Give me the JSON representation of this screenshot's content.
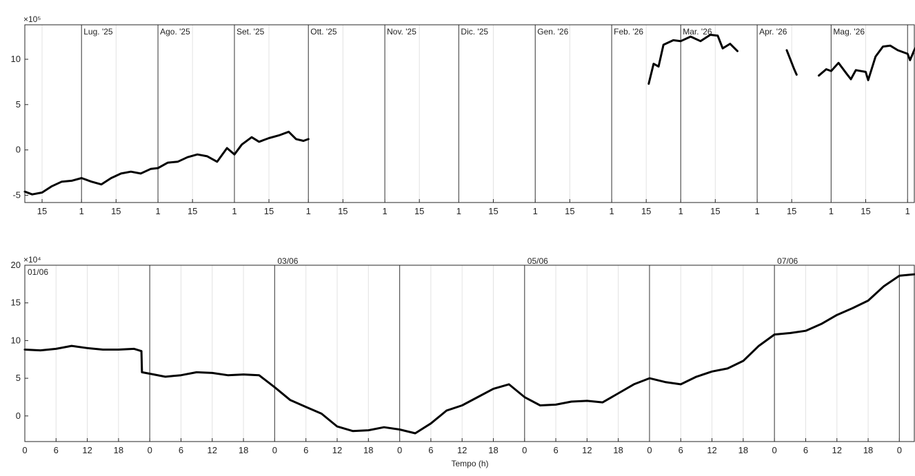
{
  "chart_data": [
    {
      "type": "line",
      "exponent_label": "×10⁵",
      "xlabel": "",
      "ylabel": "",
      "ylim": [
        -5.8,
        13.8
      ],
      "y_ticks": [
        -5,
        0,
        5,
        10
      ],
      "x_domain": [
        "2025-06-08",
        "2026-06-04"
      ],
      "month_labels": [
        {
          "date": "2025-07-01",
          "label": "Lug. '25"
        },
        {
          "date": "2025-08-01",
          "label": "Ago. '25"
        },
        {
          "date": "2025-09-01",
          "label": "Set. '25"
        },
        {
          "date": "2025-10-01",
          "label": "Ott. '25"
        },
        {
          "date": "2025-11-01",
          "label": "Nov. '25"
        },
        {
          "date": "2025-12-01",
          "label": "Dic. '25"
        },
        {
          "date": "2026-01-01",
          "label": "Gen. '26"
        },
        {
          "date": "2026-02-01",
          "label": "Feb. '26"
        },
        {
          "date": "2026-03-01",
          "label": "Mar. '26"
        },
        {
          "date": "2026-04-01",
          "label": "Apr. '26"
        },
        {
          "date": "2026-05-01",
          "label": "Mag. '26"
        },
        {
          "date": "2026-06-01",
          "label": ""
        }
      ],
      "x_ticks": [
        {
          "date": "2025-06-15",
          "label": "15"
        },
        {
          "date": "2025-07-01",
          "label": "1"
        },
        {
          "date": "2025-07-15",
          "label": "15"
        },
        {
          "date": "2025-08-01",
          "label": "1"
        },
        {
          "date": "2025-08-15",
          "label": "15"
        },
        {
          "date": "2025-09-01",
          "label": "1"
        },
        {
          "date": "2025-09-15",
          "label": "15"
        },
        {
          "date": "2025-10-01",
          "label": "1"
        },
        {
          "date": "2025-10-15",
          "label": "15"
        },
        {
          "date": "2025-11-01",
          "label": "1"
        },
        {
          "date": "2025-11-15",
          "label": "15"
        },
        {
          "date": "2025-12-01",
          "label": "1"
        },
        {
          "date": "2025-12-15",
          "label": "15"
        },
        {
          "date": "2026-01-01",
          "label": "1"
        },
        {
          "date": "2026-01-15",
          "label": "15"
        },
        {
          "date": "2026-02-01",
          "label": "1"
        },
        {
          "date": "2026-02-15",
          "label": "15"
        },
        {
          "date": "2026-03-01",
          "label": "1"
        },
        {
          "date": "2026-03-15",
          "label": "15"
        },
        {
          "date": "2026-04-01",
          "label": "1"
        },
        {
          "date": "2026-04-15",
          "label": "15"
        },
        {
          "date": "2026-05-01",
          "label": "1"
        },
        {
          "date": "2026-05-15",
          "label": "15"
        },
        {
          "date": "2026-06-01",
          "label": "1"
        }
      ],
      "series": [
        {
          "points": [
            [
              "2025-06-08",
              -4.6
            ],
            [
              "2025-06-11",
              -4.9
            ],
            [
              "2025-06-15",
              -4.7
            ],
            [
              "2025-06-19",
              -4.0
            ],
            [
              "2025-06-23",
              -3.5
            ],
            [
              "2025-06-27",
              -3.4
            ],
            [
              "2025-07-01",
              -3.1
            ],
            [
              "2025-07-05",
              -3.5
            ],
            [
              "2025-07-09",
              -3.8
            ],
            [
              "2025-07-13",
              -3.1
            ],
            [
              "2025-07-17",
              -2.6
            ],
            [
              "2025-07-21",
              -2.4
            ],
            [
              "2025-07-25",
              -2.6
            ],
            [
              "2025-07-29",
              -2.1
            ],
            [
              "2025-08-01",
              -2.0
            ],
            [
              "2025-08-05",
              -1.4
            ],
            [
              "2025-08-09",
              -1.3
            ],
            [
              "2025-08-13",
              -0.8
            ],
            [
              "2025-08-17",
              -0.5
            ],
            [
              "2025-08-21",
              -0.7
            ],
            [
              "2025-08-25",
              -1.3
            ],
            [
              "2025-08-29",
              0.2
            ],
            [
              "2025-09-01",
              -0.5
            ],
            [
              "2025-09-04",
              0.6
            ],
            [
              "2025-09-08",
              1.4
            ],
            [
              "2025-09-11",
              0.9
            ],
            [
              "2025-09-15",
              1.3
            ],
            [
              "2025-09-19",
              1.6
            ],
            [
              "2025-09-23",
              2.0
            ],
            [
              "2025-09-26",
              1.2
            ],
            [
              "2025-09-29",
              1.0
            ],
            [
              "2025-10-01",
              1.2
            ]
          ]
        },
        {
          "points": [
            [
              "2026-02-16",
              7.3
            ],
            [
              "2026-02-18",
              9.5
            ],
            [
              "2026-02-20",
              9.2
            ],
            [
              "2026-02-22",
              11.6
            ],
            [
              "2026-02-26",
              12.1
            ],
            [
              "2026-03-01",
              12.0
            ],
            [
              "2026-03-05",
              12.5
            ],
            [
              "2026-03-09",
              12.0
            ],
            [
              "2026-03-13",
              12.7
            ],
            [
              "2026-03-16",
              12.6
            ],
            [
              "2026-03-18",
              11.2
            ],
            [
              "2026-03-21",
              11.7
            ],
            [
              "2026-03-24",
              10.9
            ]
          ]
        },
        {
          "points": [
            [
              "2026-04-13",
              11.0
            ],
            [
              "2026-04-14",
              10.3
            ],
            [
              "2026-04-16",
              8.9
            ],
            [
              "2026-04-17",
              8.3
            ]
          ]
        },
        {
          "points": [
            [
              "2026-04-26",
              8.2
            ],
            [
              "2026-04-29",
              8.9
            ],
            [
              "2026-05-01",
              8.7
            ],
            [
              "2026-05-04",
              9.6
            ],
            [
              "2026-05-07",
              8.5
            ],
            [
              "2026-05-09",
              7.8
            ],
            [
              "2026-05-11",
              8.8
            ],
            [
              "2026-05-15",
              8.6
            ],
            [
              "2026-05-16",
              7.7
            ],
            [
              "2026-05-19",
              10.3
            ],
            [
              "2026-05-22",
              11.4
            ],
            [
              "2026-05-25",
              11.5
            ],
            [
              "2026-05-28",
              11.0
            ],
            [
              "2026-06-01",
              10.6
            ],
            [
              "2026-06-02",
              9.9
            ],
            [
              "2026-06-04",
              11.2
            ]
          ]
        }
      ]
    },
    {
      "type": "line",
      "exponent_label": "×10⁴",
      "xlabel": "Tempo (h)",
      "ylabel": "",
      "ylim": [
        -3.4,
        20
      ],
      "y_ticks": [
        0,
        5,
        10,
        15,
        20
      ],
      "x_domain": [
        0,
        171
      ],
      "day_labels": [
        {
          "x": 0,
          "label": "01/06"
        },
        {
          "x": 48,
          "label": "03/06"
        },
        {
          "x": 96,
          "label": "05/06"
        },
        {
          "x": 144,
          "label": "07/06"
        }
      ],
      "day_boundaries": [
        24,
        48,
        72,
        96,
        120,
        144,
        168
      ],
      "x_ticks": [
        {
          "x": 0,
          "label": "0"
        },
        {
          "x": 6,
          "label": "6"
        },
        {
          "x": 12,
          "label": "12"
        },
        {
          "x": 18,
          "label": "18"
        },
        {
          "x": 24,
          "label": "0"
        },
        {
          "x": 30,
          "label": "6"
        },
        {
          "x": 36,
          "label": "12"
        },
        {
          "x": 42,
          "label": "18"
        },
        {
          "x": 48,
          "label": "0"
        },
        {
          "x": 54,
          "label": "6"
        },
        {
          "x": 60,
          "label": "12"
        },
        {
          "x": 66,
          "label": "18"
        },
        {
          "x": 72,
          "label": "0"
        },
        {
          "x": 78,
          "label": "6"
        },
        {
          "x": 84,
          "label": "12"
        },
        {
          "x": 90,
          "label": "18"
        },
        {
          "x": 96,
          "label": "0"
        },
        {
          "x": 102,
          "label": "6"
        },
        {
          "x": 108,
          "label": "12"
        },
        {
          "x": 114,
          "label": "18"
        },
        {
          "x": 120,
          "label": "0"
        },
        {
          "x": 126,
          "label": "6"
        },
        {
          "x": 132,
          "label": "12"
        },
        {
          "x": 138,
          "label": "18"
        },
        {
          "x": 144,
          "label": "0"
        },
        {
          "x": 150,
          "label": "6"
        },
        {
          "x": 156,
          "label": "12"
        },
        {
          "x": 162,
          "label": "18"
        },
        {
          "x": 168,
          "label": "0"
        }
      ],
      "series": [
        {
          "points": [
            [
              0,
              8.8
            ],
            [
              3,
              8.7
            ],
            [
              6,
              8.9
            ],
            [
              9,
              9.3
            ],
            [
              12,
              9.0
            ],
            [
              15,
              8.8
            ],
            [
              18,
              8.8
            ],
            [
              21,
              8.9
            ],
            [
              22.4,
              8.6
            ],
            [
              22.5,
              5.8
            ],
            [
              24,
              5.6
            ],
            [
              27,
              5.2
            ],
            [
              30,
              5.4
            ],
            [
              33,
              5.8
            ],
            [
              36,
              5.7
            ],
            [
              39,
              5.4
            ],
            [
              42,
              5.5
            ],
            [
              45,
              5.4
            ],
            [
              48,
              3.8
            ],
            [
              51,
              2.1
            ],
            [
              54,
              1.2
            ],
            [
              57,
              0.3
            ],
            [
              60,
              -1.4
            ],
            [
              63,
              -2.0
            ],
            [
              66,
              -1.9
            ],
            [
              69,
              -1.5
            ],
            [
              72,
              -1.8
            ],
            [
              75,
              -2.3
            ],
            [
              78,
              -1.0
            ],
            [
              81,
              0.7
            ],
            [
              84,
              1.4
            ],
            [
              87,
              2.5
            ],
            [
              90,
              3.6
            ],
            [
              93,
              4.2
            ],
            [
              96,
              2.5
            ],
            [
              99,
              1.4
            ],
            [
              102,
              1.5
            ],
            [
              105,
              1.9
            ],
            [
              108,
              2.0
            ],
            [
              111,
              1.8
            ],
            [
              114,
              3.0
            ],
            [
              117,
              4.2
            ],
            [
              120,
              5.0
            ],
            [
              123,
              4.5
            ],
            [
              126,
              4.2
            ],
            [
              129,
              5.2
            ],
            [
              132,
              5.9
            ],
            [
              135,
              6.3
            ],
            [
              138,
              7.3
            ],
            [
              141,
              9.3
            ],
            [
              144,
              10.8
            ],
            [
              147,
              11.0
            ],
            [
              150,
              11.3
            ],
            [
              153,
              12.2
            ],
            [
              156,
              13.4
            ],
            [
              159,
              14.3
            ],
            [
              162,
              15.3
            ],
            [
              165,
              17.2
            ],
            [
              168,
              18.6
            ],
            [
              171,
              18.8
            ]
          ]
        }
      ]
    }
  ]
}
